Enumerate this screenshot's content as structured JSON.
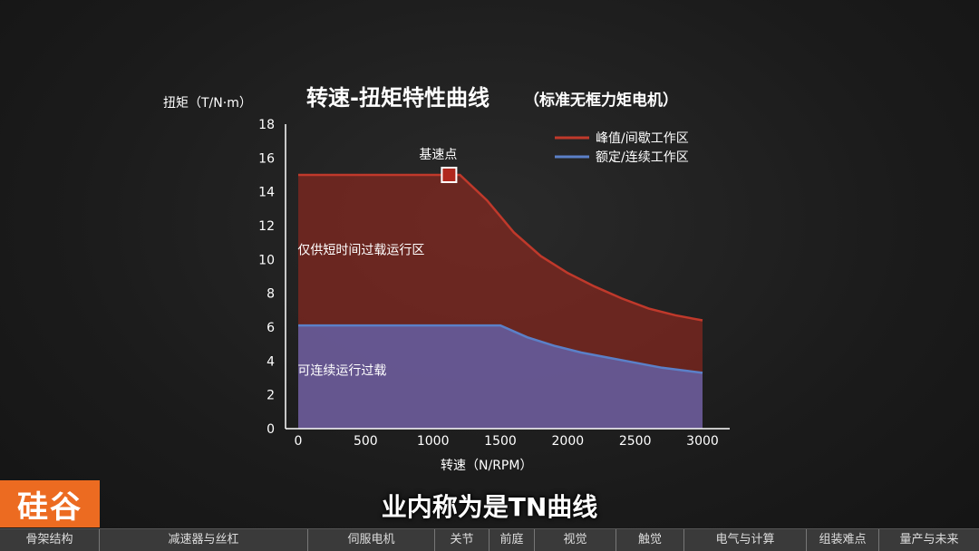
{
  "chart_data": {
    "type": "area",
    "title": "转速-扭矩特性曲线",
    "subtitle": "（标准无框力矩电机）",
    "ylabel": "扭矩（T/N·m）",
    "xlabel": "转速（N/RPM）",
    "xlim": [
      0,
      3000
    ],
    "ylim": [
      0,
      18
    ],
    "xticks": [
      "0",
      "500",
      "1000",
      "1500",
      "2000",
      "2500",
      "3000"
    ],
    "yticks": [
      "0",
      "2",
      "4",
      "6",
      "8",
      "10",
      "12",
      "14",
      "16",
      "18"
    ],
    "grid": false,
    "legend_position": "top-right",
    "series": [
      {
        "name": "峰值/间歇工作区",
        "color": "#c0392b",
        "x": [
          0,
          1200,
          1400,
          1600,
          1800,
          2000,
          2200,
          2400,
          2600,
          2800,
          3000
        ],
        "y": [
          15,
          15,
          13.5,
          11.6,
          10.2,
          9.2,
          8.4,
          7.7,
          7.1,
          6.7,
          6.4
        ]
      },
      {
        "name": "额定/连续工作区",
        "color": "#5b80c8",
        "x": [
          0,
          1500,
          1700,
          1900,
          2100,
          2300,
          2500,
          2700,
          2900,
          3000
        ],
        "y": [
          6.1,
          6.1,
          5.4,
          4.9,
          4.5,
          4.2,
          3.9,
          3.6,
          3.4,
          3.3
        ]
      }
    ],
    "base_point": {
      "label": "基速点",
      "x": 1200,
      "y": 15
    },
    "annotations": [
      {
        "text": "仅供短时间过载运行区",
        "x": 50,
        "y": 10.3
      },
      {
        "text": "可连续运行过载",
        "x": 50,
        "y": 3.2
      }
    ]
  },
  "logo": {
    "text": "硅谷"
  },
  "subtitle_caption": "业内称为是TN曲线",
  "nav": {
    "items": [
      {
        "label": "骨架结构",
        "width": 110
      },
      {
        "label": "减速器与丝杠",
        "width": 230
      },
      {
        "label": "伺服电机",
        "width": 140
      },
      {
        "label": "关节",
        "width": 60
      },
      {
        "label": "前庭",
        "width": 50
      },
      {
        "label": "视觉",
        "width": 90
      },
      {
        "label": "触觉",
        "width": 75
      },
      {
        "label": "电气与计算",
        "width": 135
      },
      {
        "label": "组装难点",
        "width": 80
      },
      {
        "label": "量产与未来",
        "width": 110
      }
    ]
  }
}
